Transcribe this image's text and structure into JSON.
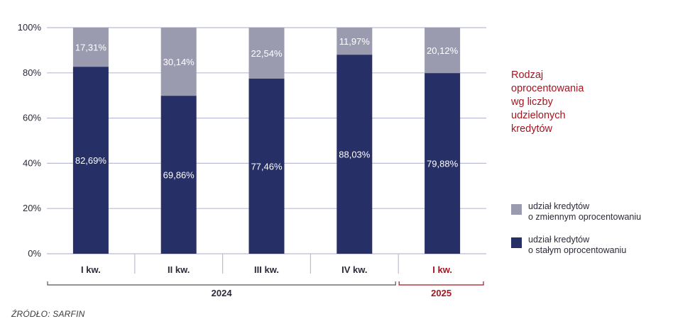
{
  "chart_data": {
    "type": "bar",
    "stacked": true,
    "categories": [
      "I kw.",
      "II kw.",
      "III kw.",
      "IV kw.",
      "I kw."
    ],
    "groups": [
      {
        "label": "2024",
        "categories": [
          0,
          1,
          2,
          3
        ],
        "color": "#555555"
      },
      {
        "label": "2025",
        "categories": [
          4
        ],
        "color": "#a3161f"
      }
    ],
    "series": [
      {
        "name": "udział kredytów o stałym oprocentowaniu",
        "values": [
          82.69,
          69.86,
          77.46,
          88.03,
          79.88
        ],
        "labels": [
          "82,69%",
          "69,86%",
          "77,46%",
          "88,03%",
          "79,88%"
        ],
        "color": "#262f66"
      },
      {
        "name": "udział kredytów o zmiennym oprocentowaniu",
        "values": [
          17.31,
          30.14,
          22.54,
          11.97,
          20.12
        ],
        "labels": [
          "17,31%",
          "30,14%",
          "22,54%",
          "11,97%",
          "20,12%"
        ],
        "color": "#9b9bb0"
      }
    ],
    "ylim": [
      0,
      100
    ],
    "yticks": [
      0,
      20,
      40,
      60,
      80,
      100
    ],
    "ytick_labels": [
      "0%",
      "20%",
      "40%",
      "60%",
      "80%",
      "100%"
    ],
    "grid": true,
    "legend_position": "right"
  },
  "title_lines": [
    "Rodzaj",
    "oprocentowania",
    "wg liczby",
    "udzielonych",
    "kredytów"
  ],
  "legend": [
    {
      "lines": [
        "udział kredytów",
        "o zmiennym oprocentowaniu"
      ],
      "color": "#9b9bb0"
    },
    {
      "lines": [
        "udział kredytów",
        "o stałym oprocentowaniu"
      ],
      "color": "#262f66"
    }
  ],
  "source": "ŹRÓDŁO: SARFIN"
}
